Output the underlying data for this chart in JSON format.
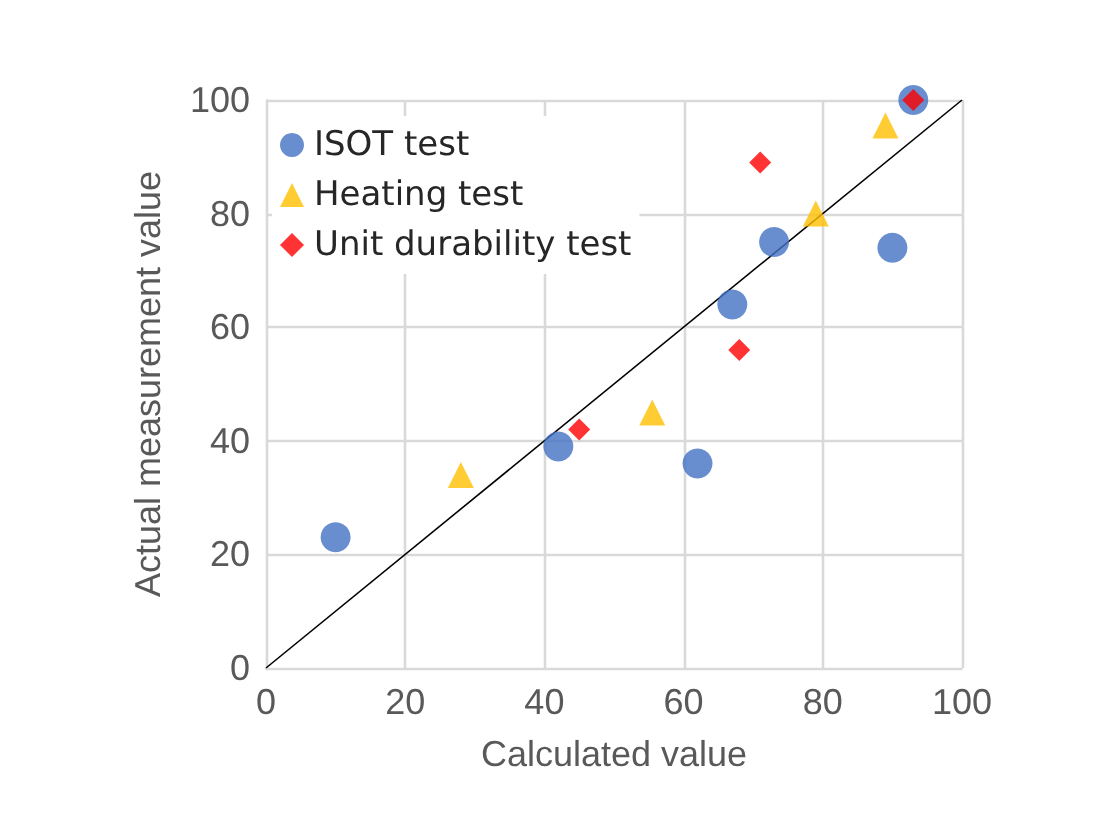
{
  "chart_data": {
    "type": "scatter",
    "xlabel": "Calculated value",
    "ylabel": "Actual measurement value",
    "xlim": [
      0,
      100
    ],
    "ylim": [
      0,
      100
    ],
    "xticks": [
      0,
      20,
      40,
      60,
      80,
      100
    ],
    "yticks": [
      0,
      20,
      40,
      60,
      80,
      100
    ],
    "grid": true,
    "legend": "top left",
    "series": [
      {
        "name": "ISOT test",
        "color": "#4472c4",
        "marker": "circle",
        "x": [
          10,
          42,
          62,
          67,
          73,
          90,
          93
        ],
        "values": [
          23,
          39,
          36,
          64,
          75,
          74,
          100
        ]
      },
      {
        "name": "Heating test",
        "color": "#ffc000",
        "marker": "triangle",
        "x": [
          28,
          55.5,
          79,
          89
        ],
        "values": [
          34,
          45,
          80,
          95.5
        ]
      },
      {
        "name": "Unit durability test",
        "color": "#ff0000",
        "marker": "diamond",
        "x": [
          45,
          68,
          71,
          93
        ],
        "values": [
          42,
          56,
          89,
          100
        ]
      },
      {
        "type": "line",
        "color": "#000000",
        "marker": "none",
        "x": [
          0,
          100
        ],
        "values": [
          0,
          100
        ]
      }
    ]
  }
}
